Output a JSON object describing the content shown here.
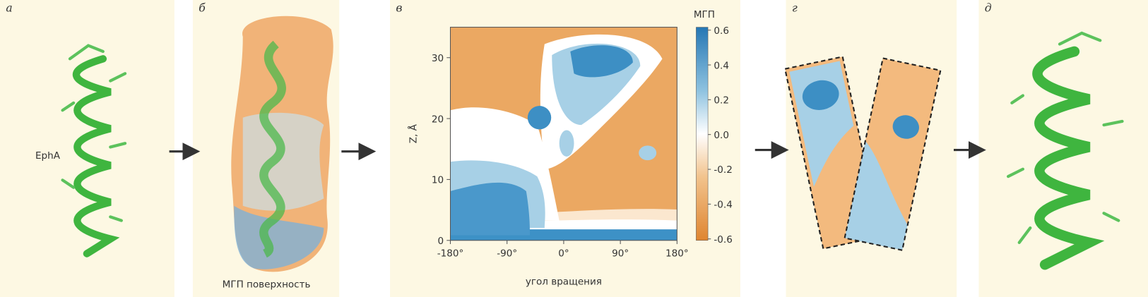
{
  "panels": [
    {
      "label": "а",
      "caption": "EphA"
    },
    {
      "label": "б",
      "caption": "МГП поверхность"
    },
    {
      "label": "в"
    },
    {
      "label": "г"
    },
    {
      "label": "д"
    }
  ],
  "chart_data": {
    "type": "contour",
    "title": "МГП",
    "xlabel": "угол вращения",
    "ylabel": "Z, Å",
    "xlim": [
      -180,
      180
    ],
    "xticks": [
      {
        "value": -180,
        "label": "-180°"
      },
      {
        "value": -90,
        "label": "-90°"
      },
      {
        "value": 0,
        "label": "0°"
      },
      {
        "value": 90,
        "label": "90°"
      },
      {
        "value": 180,
        "label": "180°"
      }
    ],
    "ylim": [
      0,
      35
    ],
    "yticks": [
      0,
      10,
      20,
      30
    ],
    "clim": [
      -0.6,
      0.6
    ],
    "cticks": [
      0.6,
      0.4,
      0.2,
      {
        "value": 0,
        "label": "0.0"
      },
      -0.2,
      -0.4,
      -0.6
    ]
  }
}
